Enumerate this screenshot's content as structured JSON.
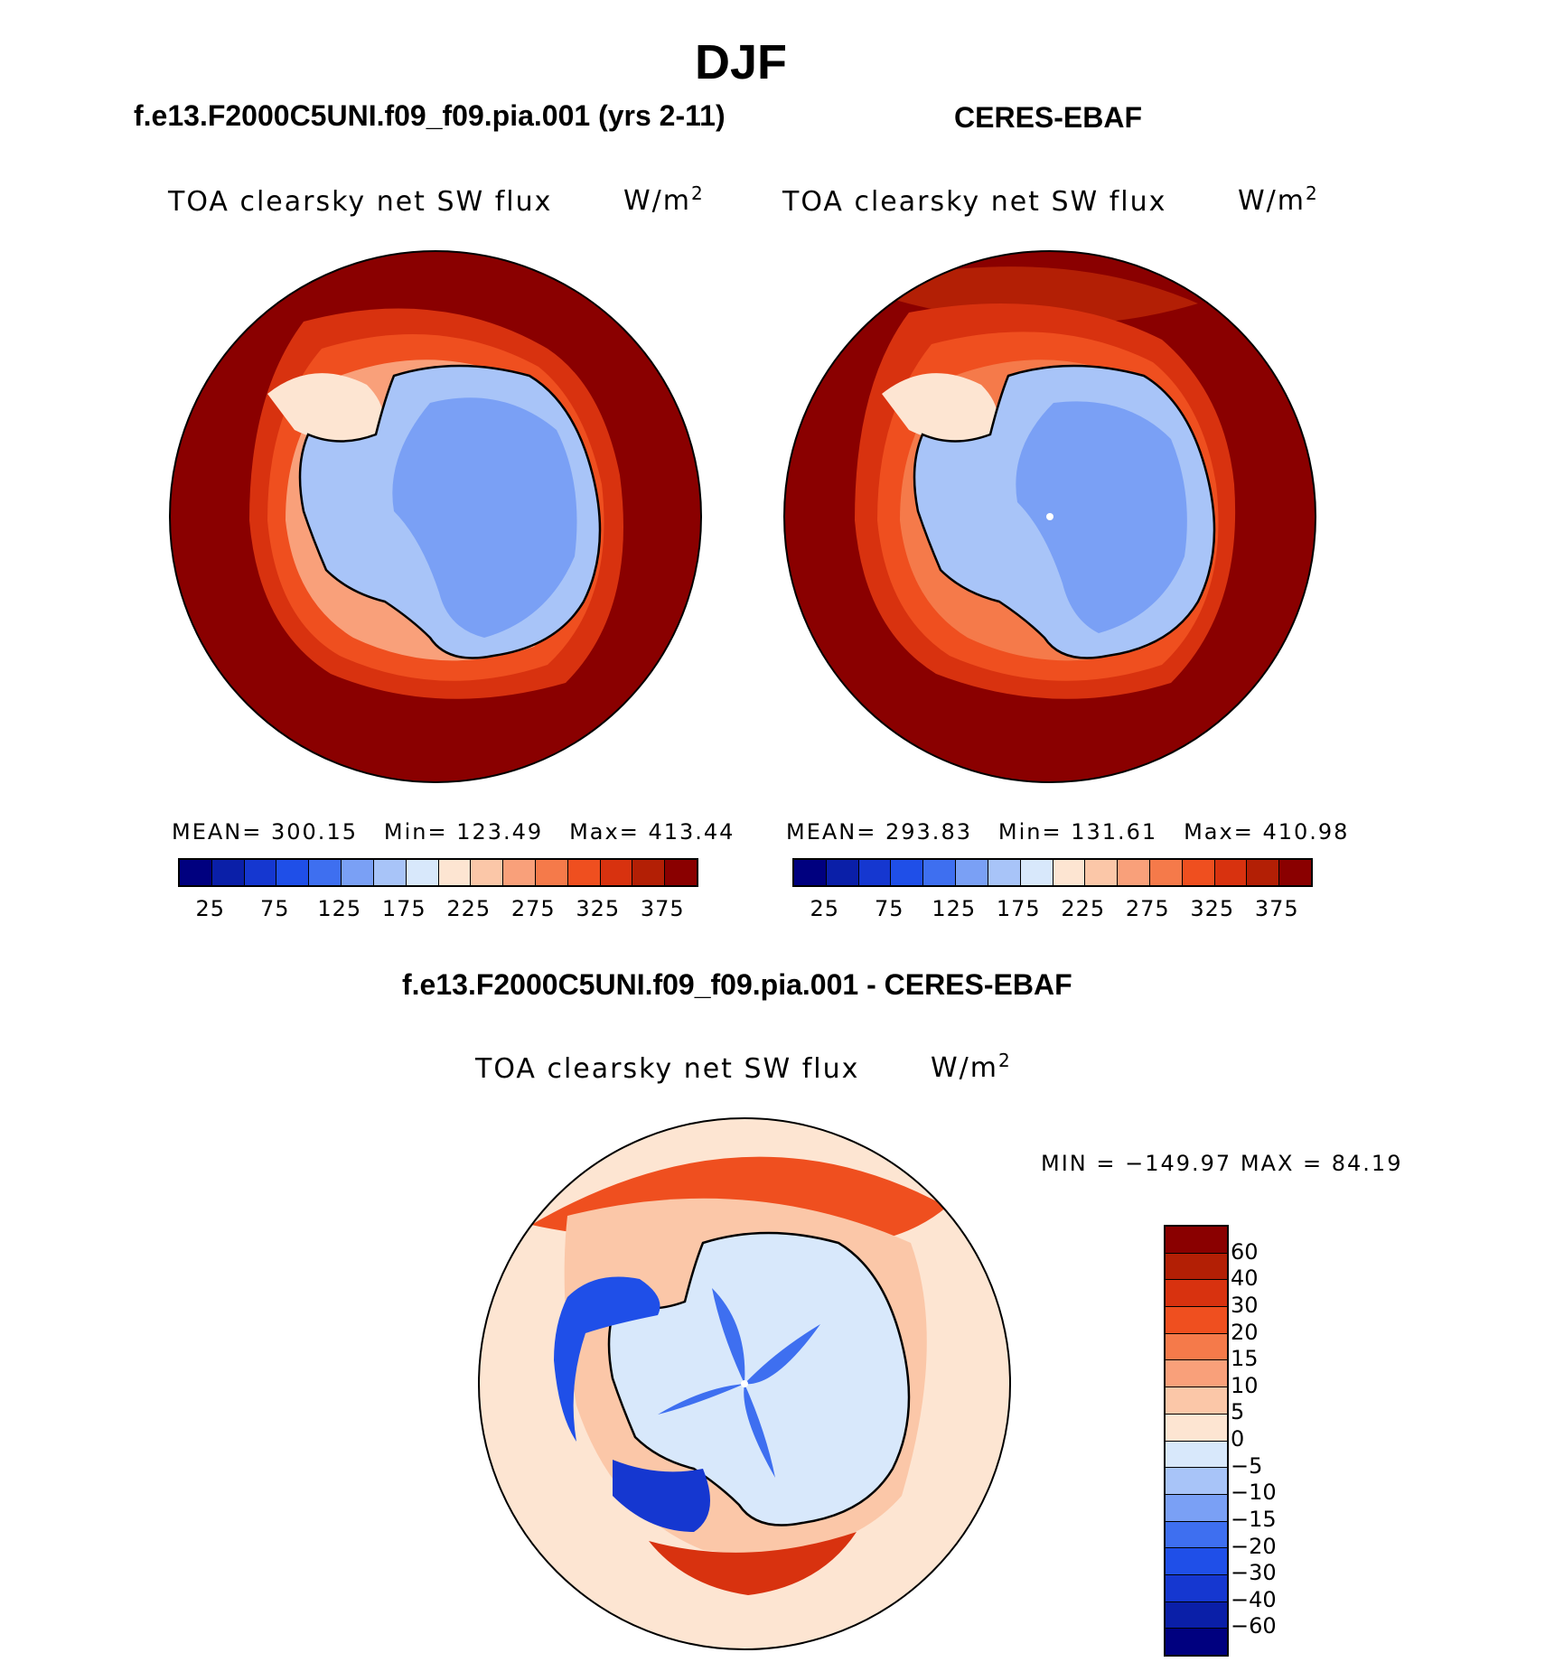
{
  "title": "DJF",
  "panels": {
    "model": {
      "subtitle": "f.e13.F2000C5UNI.f09_f09.pia.001 (yrs 2-11)",
      "plot_title": "TOA clearsky net SW flux",
      "units": "W/m",
      "units_sup": "2",
      "mean_label": "MEAN=",
      "mean": "300.15",
      "min_label": "Min=",
      "min": "123.49",
      "max_label": "Max=",
      "max": "413.44"
    },
    "obs": {
      "subtitle": "CERES-EBAF",
      "plot_title": "TOA clearsky net SW flux",
      "units": "W/m",
      "units_sup": "2",
      "mean_label": "MEAN=",
      "mean": "293.83",
      "min_label": "Min=",
      "min": "131.61",
      "max_label": "Max=",
      "max": "410.98"
    },
    "diff": {
      "subtitle": "f.e13.F2000C5UNI.f09_f09.pia.001 - CERES-EBAF",
      "plot_title": "TOA clearsky net SW flux",
      "units": "W/m",
      "units_sup": "2",
      "minmax_text": "MIN = −149.97 MAX =   84.19"
    }
  },
  "chart_data": [
    {
      "type": "heatmap",
      "projection": "south polar stereographic",
      "title": "TOA clearsky net SW flux",
      "units": "W/m2",
      "mean": 300.15,
      "min": 123.49,
      "max": 413.44,
      "colorbar_ticks": [
        "25",
        "75",
        "125",
        "175",
        "225",
        "275",
        "325",
        "375"
      ],
      "levels": [
        25,
        50,
        75,
        100,
        125,
        150,
        175,
        200,
        225,
        250,
        275,
        300,
        325,
        350,
        375
      ],
      "colors": [
        "#00007f",
        "#0a1fa8",
        "#1537d0",
        "#1f4fe8",
        "#3e6ff0",
        "#7aa0f5",
        "#a8c4f8",
        "#d8e8fb",
        "#fde5d2",
        "#fbc7a8",
        "#f9a07a",
        "#f57a4a",
        "#ef4f1f",
        "#d8320f",
        "#b31f05",
        "#8a0000"
      ]
    },
    {
      "type": "heatmap",
      "projection": "south polar stereographic",
      "title": "TOA clearsky net SW flux",
      "units": "W/m2",
      "mean": 293.83,
      "min": 131.61,
      "max": 410.98,
      "colorbar_ticks": [
        "25",
        "75",
        "125",
        "175",
        "225",
        "275",
        "325",
        "375"
      ],
      "levels": [
        25,
        50,
        75,
        100,
        125,
        150,
        175,
        200,
        225,
        250,
        275,
        300,
        325,
        350,
        375
      ],
      "colors": [
        "#00007f",
        "#0a1fa8",
        "#1537d0",
        "#1f4fe8",
        "#3e6ff0",
        "#7aa0f5",
        "#a8c4f8",
        "#d8e8fb",
        "#fde5d2",
        "#fbc7a8",
        "#f9a07a",
        "#f57a4a",
        "#ef4f1f",
        "#d8320f",
        "#b31f05",
        "#8a0000"
      ]
    },
    {
      "type": "heatmap",
      "projection": "south polar stereographic",
      "title": "TOA clearsky net SW flux",
      "units": "W/m2",
      "min": -149.97,
      "max": 84.19,
      "colorbar_ticks": [
        "60",
        "40",
        "30",
        "20",
        "15",
        "10",
        "5",
        "0",
        "−5",
        "−10",
        "−15",
        "−20",
        "−30",
        "−40",
        "−60"
      ],
      "levels": [
        60,
        40,
        30,
        20,
        15,
        10,
        5,
        0,
        -5,
        -10,
        -15,
        -20,
        -30,
        -40,
        -60
      ],
      "colors": [
        "#8a0000",
        "#b31f05",
        "#d8320f",
        "#ef4f1f",
        "#f57a4a",
        "#f9a07a",
        "#fbc7a8",
        "#fde5d2",
        "#d8e8fb",
        "#a8c4f8",
        "#7aa0f5",
        "#3e6ff0",
        "#1f4fe8",
        "#1537d0",
        "#0a1fa8",
        "#00007f"
      ]
    }
  ]
}
